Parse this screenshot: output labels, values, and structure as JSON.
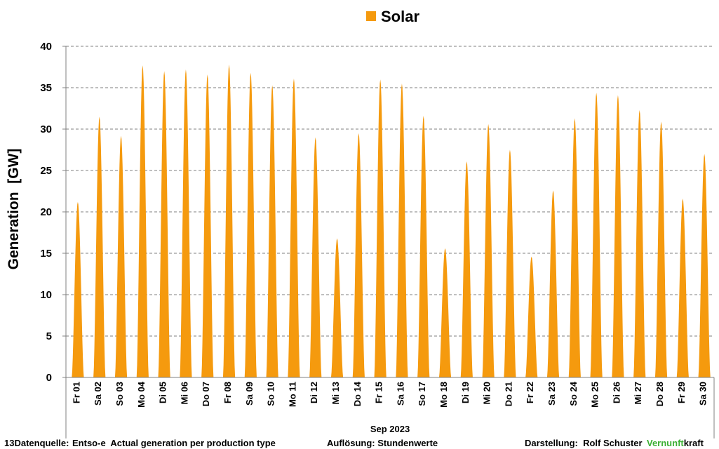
{
  "chart_data": {
    "type": "area",
    "title": "",
    "ylabel": "Generation  [GW]",
    "xlabel": "Sep 2023",
    "ylim": [
      0,
      40
    ],
    "yticks": [
      0,
      5,
      10,
      15,
      20,
      25,
      30,
      35,
      40
    ],
    "grid": "horizontal-dashed",
    "legend_position": "top-center",
    "series": [
      {
        "name": "Solar",
        "color": "#f59a0e",
        "daily_peaks": [
          21.2,
          31.5,
          29.2,
          37.7,
          37.0,
          37.2,
          36.6,
          37.8,
          36.8,
          35.3,
          36.1,
          29.0,
          16.8,
          29.5,
          36.0,
          35.5,
          31.6,
          15.6,
          26.1,
          30.6,
          27.5,
          14.6,
          22.6,
          31.3,
          34.4,
          34.1,
          32.3,
          30.9,
          21.6,
          27.0
        ]
      }
    ],
    "categories": [
      "Fr 01",
      "Sa 02",
      "So 03",
      "Mo 04",
      "Di 05",
      "Mi 06",
      "Do 07",
      "Fr 08",
      "Sa 09",
      "So 10",
      "Mo 11",
      "Di 12",
      "Mi 13",
      "Do 14",
      "Fr 15",
      "Sa 16",
      "So 17",
      "Mo 18",
      "Di 19",
      "Mi 20",
      "Do 21",
      "Fr 22",
      "Sa 23",
      "So 24",
      "Mo 25",
      "Di 26",
      "Mi 27",
      "Do 28",
      "Fr 29",
      "Sa 30"
    ]
  },
  "footer": {
    "source_prefix": "13Datenquelle:",
    "source_text": "Entso-e  Actual generation per production type",
    "resolution": "Auflösung: Stundenwerte",
    "author": "Darstellung:  Rolf Schuster",
    "brand_green": "Vernunft",
    "brand_black": "kraft",
    "brand_color": "#3cb034"
  }
}
